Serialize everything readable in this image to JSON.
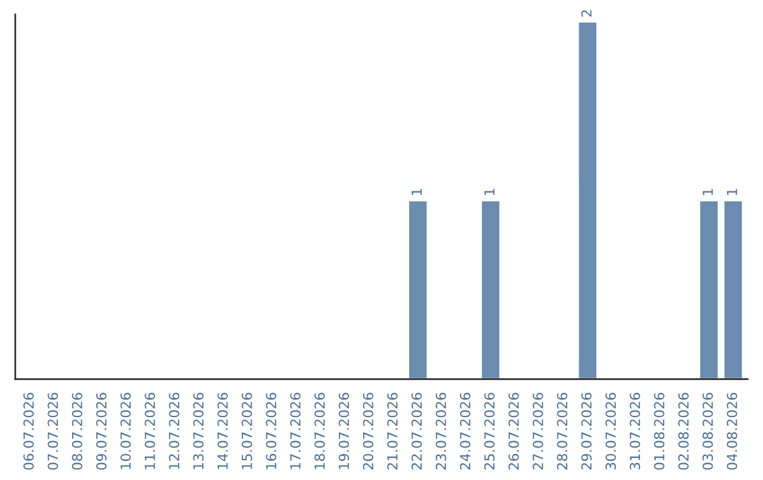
{
  "chart_data": {
    "type": "bar",
    "categories": [
      "06.07.2026",
      "07.07.2026",
      "08.07.2026",
      "09.07.2026",
      "10.07.2026",
      "11.07.2026",
      "12.07.2026",
      "13.07.2026",
      "14.07.2026",
      "15.07.2026",
      "16.07.2026",
      "17.07.2026",
      "18.07.2026",
      "19.07.2026",
      "20.07.2026",
      "21.07.2026",
      "22.07.2026",
      "23.07.2026",
      "24.07.2026",
      "25.07.2026",
      "26.07.2026",
      "27.07.2026",
      "28.07.2026",
      "29.07.2026",
      "30.07.2026",
      "31.07.2026",
      "01.08.2026",
      "02.08.2026",
      "03.08.2026",
      "04.08.2026"
    ],
    "values": [
      null,
      null,
      null,
      null,
      null,
      null,
      null,
      null,
      null,
      null,
      null,
      null,
      null,
      null,
      null,
      null,
      1,
      null,
      null,
      1,
      null,
      null,
      null,
      2,
      null,
      null,
      null,
      null,
      1,
      1
    ],
    "value_labels": [
      null,
      null,
      null,
      null,
      null,
      null,
      null,
      null,
      null,
      null,
      null,
      null,
      null,
      null,
      null,
      null,
      "1",
      null,
      null,
      "1",
      null,
      null,
      null,
      "2",
      null,
      null,
      null,
      null,
      "1",
      "1"
    ],
    "color": "#6a8caf",
    "ylim": [
      0,
      2.04
    ],
    "tick_labels": "x",
    "grid": false,
    "legend": false
  }
}
